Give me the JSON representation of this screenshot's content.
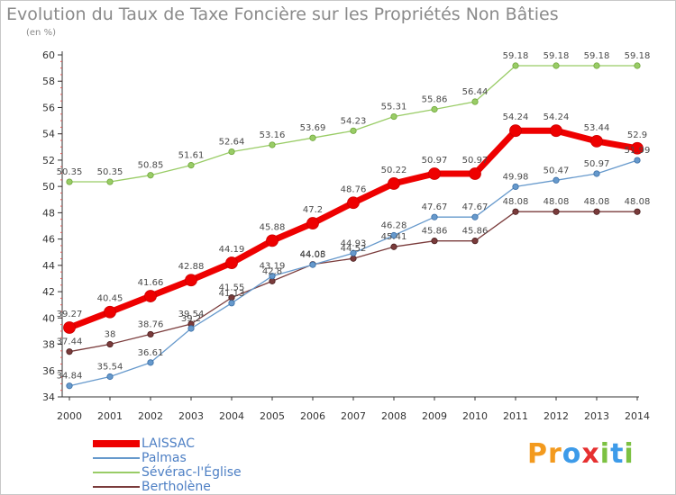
{
  "title": "Evolution du Taux de Taxe Foncière sur les Propriétés Non Bâties",
  "unit_label": "(en %)",
  "brand": {
    "letters": [
      "P",
      "r",
      "o",
      "x",
      "i",
      "t",
      "i"
    ],
    "colors": [
      "#f39a1e",
      "#f39a1e",
      "#3d9be9",
      "#e63030",
      "#7cc142",
      "#3d9be9",
      "#7cc142"
    ]
  },
  "chart_data": {
    "type": "line",
    "title": "Evolution du Taux de Taxe Foncière sur les Propriétés Non Bâties",
    "ylabel": "(en %)",
    "xlabel": "",
    "x": [
      "2000",
      "2001",
      "2002",
      "2003",
      "2004",
      "2005",
      "2006",
      "2007",
      "2008",
      "2009",
      "2010",
      "2011",
      "2012",
      "2013",
      "2014"
    ],
    "ylim": [
      34,
      60
    ],
    "yticks": [
      "34",
      "36",
      "38",
      "40",
      "42",
      "44",
      "46",
      "48",
      "50",
      "52",
      "54",
      "56",
      "58",
      "60"
    ],
    "grid": false,
    "legend_position": "bottom-left",
    "series": [
      {
        "name": "LAISSAC",
        "color": "#ee0000",
        "values": [
          39.27,
          40.45,
          41.66,
          42.88,
          44.19,
          45.88,
          47.2,
          48.76,
          50.22,
          50.97,
          50.97,
          54.24,
          54.24,
          53.44,
          52.9
        ],
        "labels": [
          "39.27",
          "40.45",
          "41.66",
          "42.88",
          "44.19",
          "45.88",
          "47.2",
          "48.76",
          "50.22",
          "50.97",
          "50.97",
          "54.24",
          "54.24",
          "53.44",
          "52.9"
        ]
      },
      {
        "name": "Palmas",
        "color": "#6699cc",
        "values": [
          34.84,
          35.54,
          36.61,
          39.2,
          41.13,
          43.19,
          44.05,
          44.93,
          46.28,
          47.67,
          47.67,
          49.98,
          50.47,
          50.97,
          51.99
        ],
        "labels": [
          "34.84",
          "35.54",
          "36.61",
          "39.2",
          "41.13",
          "43.19",
          "44.05",
          "44.93",
          "46.28",
          "47.67",
          "47.67",
          "49.98",
          "50.47",
          "50.97",
          "51.99"
        ]
      },
      {
        "name": "Sévérac-l'Église",
        "color": "#99cc66",
        "values": [
          50.35,
          50.35,
          50.85,
          51.61,
          52.64,
          53.16,
          53.69,
          54.23,
          55.31,
          55.86,
          56.44,
          59.18,
          59.18,
          59.18,
          59.18
        ],
        "labels": [
          "50.35",
          "50.35",
          "50.85",
          "51.61",
          "52.64",
          "53.16",
          "53.69",
          "54.23",
          "55.31",
          "55.86",
          "56.44",
          "59.18",
          "59.18",
          "59.18",
          "59.18"
        ]
      },
      {
        "name": "Bertholène",
        "color": "#7a3b3b",
        "values": [
          37.44,
          38,
          38.76,
          39.54,
          41.55,
          42.8,
          44.08,
          44.52,
          45.41,
          45.86,
          45.86,
          48.08,
          48.08,
          48.08,
          48.08
        ],
        "labels": [
          "37.44",
          "38",
          "38.76",
          "39.54",
          "41.55",
          "42.8",
          "44.08",
          "44.52",
          "45.41",
          "45.86",
          "45.86",
          "48.08",
          "48.08",
          "48.08",
          "48.08"
        ]
      }
    ]
  }
}
